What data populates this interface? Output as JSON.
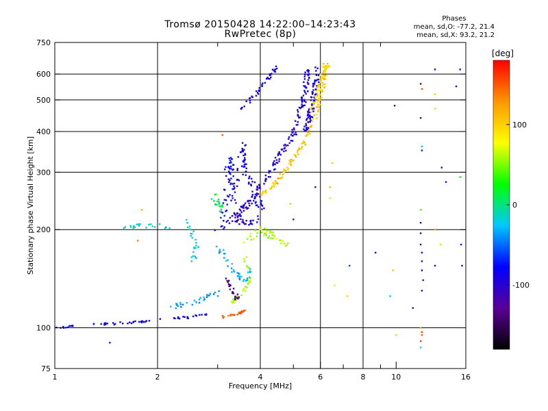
{
  "chart_data": {
    "type": "scatter",
    "title": "Tromsø 20150428 14:22:00–14:23:43",
    "subtitle": "RwPretec (8p)",
    "xlabel": "Frequency [MHz]",
    "ylabel": "Stationary phase Virtual Height [km]",
    "x_scale": "log",
    "y_scale": "log",
    "xlim": [
      1,
      16
    ],
    "ylim": [
      75,
      750
    ],
    "x_ticks": [
      1,
      2,
      4,
      6,
      8,
      10,
      16
    ],
    "x_tick_labels": [
      "1",
      "2",
      "4",
      "6",
      "8",
      "10",
      "16"
    ],
    "x_grid": [
      2,
      4,
      6,
      8
    ],
    "x_minor": [
      3,
      5,
      7,
      9
    ],
    "y_ticks": [
      75,
      100,
      200,
      300,
      400,
      500,
      600,
      750
    ],
    "y_tick_labels": [
      "75",
      "100",
      "200",
      "300",
      "400",
      "500",
      "600",
      "750"
    ],
    "y_grid": [
      100,
      200,
      300,
      400,
      500,
      600
    ],
    "grid": true,
    "phase_info": {
      "heading": "Phases",
      "line_o": "mean, sd,O: -77.2, 21.4",
      "line_x": "mean, sd,X:  93.2, 21.2"
    },
    "colorbar": {
      "label": "[deg]",
      "range": [
        -180,
        180
      ],
      "ticks": [
        100,
        0,
        -100
      ],
      "tick_labels": [
        "100",
        "0",
        "-100"
      ],
      "colors": [
        "#000000",
        "#5a0096",
        "#0000ff",
        "#00c8ff",
        "#00ff00",
        "#ffff00",
        "#ff9600",
        "#ff0000"
      ]
    },
    "series": [
      {
        "kind": "trace",
        "phase": -85,
        "spread": 0.6,
        "count": 60,
        "points": [
          [
            1.0,
            100
          ],
          [
            1.3,
            102
          ],
          [
            1.5,
            103
          ],
          [
            1.8,
            104.5
          ],
          [
            2.1,
            106
          ],
          [
            2.5,
            108
          ],
          [
            2.8,
            110
          ]
        ]
      },
      {
        "kind": "trace",
        "phase": -80,
        "spread": 1.5,
        "count": 55,
        "points": [
          [
            3.1,
            200
          ],
          [
            3.15,
            250
          ],
          [
            3.2,
            300
          ],
          [
            3.25,
            330
          ],
          [
            3.3,
            290
          ],
          [
            3.35,
            240
          ]
        ]
      },
      {
        "kind": "trace",
        "phase": -82,
        "spread": 2.0,
        "count": 80,
        "points": [
          [
            3.2,
            240
          ],
          [
            3.5,
            300
          ],
          [
            3.55,
            360
          ],
          [
            3.6,
            310
          ],
          [
            3.9,
            255
          ],
          [
            4.0,
            230
          ]
        ]
      },
      {
        "kind": "trace",
        "phase": -95,
        "spread": 1.4,
        "count": 170,
        "points": [
          [
            3.4,
            220
          ],
          [
            3.8,
            250
          ],
          [
            4.2,
            290
          ],
          [
            4.6,
            340
          ],
          [
            5.0,
            390
          ],
          [
            5.2,
            450
          ],
          [
            5.4,
            520
          ],
          [
            5.5,
            620
          ]
        ]
      },
      {
        "kind": "trace",
        "phase": -90,
        "spread": 1.4,
        "count": 80,
        "points": [
          [
            5.4,
            400
          ],
          [
            5.6,
            450
          ],
          [
            5.75,
            520
          ],
          [
            5.9,
            620
          ]
        ]
      },
      {
        "kind": "trace",
        "phase": -88,
        "spread": 1.0,
        "count": 40,
        "points": [
          [
            3.5,
            470
          ],
          [
            3.9,
            520
          ],
          [
            4.2,
            580
          ],
          [
            4.5,
            640
          ]
        ]
      },
      {
        "kind": "trace",
        "phase": 105,
        "spread": 1.0,
        "count": 120,
        "points": [
          [
            4.0,
            255
          ],
          [
            4.4,
            275
          ],
          [
            4.8,
            310
          ],
          [
            5.2,
            350
          ],
          [
            5.6,
            400
          ],
          [
            5.9,
            470
          ],
          [
            6.1,
            560
          ],
          [
            6.2,
            650
          ]
        ]
      },
      {
        "kind": "trace",
        "phase": 95,
        "spread": 1.0,
        "count": 55,
        "points": [
          [
            5.6,
            460
          ],
          [
            5.9,
            520
          ],
          [
            6.1,
            600
          ],
          [
            6.3,
            640
          ]
        ]
      },
      {
        "kind": "trace",
        "phase": 150,
        "spread": 0.5,
        "count": 30,
        "points": [
          [
            3.1,
            108
          ],
          [
            3.3,
            109
          ],
          [
            3.5,
            111
          ],
          [
            3.6,
            113
          ]
        ]
      },
      {
        "kind": "trace",
        "phase": 60,
        "spread": 0.8,
        "count": 40,
        "points": [
          [
            3.3,
            120
          ],
          [
            3.5,
            125
          ],
          [
            3.7,
            135
          ],
          [
            3.7,
            150
          ],
          [
            3.6,
            165
          ]
        ]
      },
      {
        "kind": "trace",
        "phase": -30,
        "spread": 1.2,
        "count": 40,
        "points": [
          [
            3.0,
            180
          ],
          [
            3.2,
            160
          ],
          [
            3.4,
            145
          ],
          [
            3.6,
            140
          ],
          [
            3.8,
            150
          ]
        ]
      },
      {
        "kind": "trace",
        "phase": -140,
        "spread": 1.2,
        "count": 25,
        "points": [
          [
            3.2,
            140
          ],
          [
            3.3,
            130
          ],
          [
            3.4,
            125
          ],
          [
            3.5,
            120
          ]
        ]
      },
      {
        "kind": "trace",
        "phase": -20,
        "spread": 1.2,
        "count": 25,
        "points": [
          [
            2.4,
            215
          ],
          [
            2.5,
            200
          ],
          [
            2.6,
            180
          ],
          [
            2.55,
            160
          ]
        ]
      },
      {
        "kind": "trace",
        "phase": -20,
        "spread": 1.0,
        "count": 22,
        "points": [
          [
            1.6,
            205
          ],
          [
            1.8,
            205
          ],
          [
            2.0,
            206
          ],
          [
            2.2,
            200
          ]
        ]
      },
      {
        "kind": "trace",
        "phase": -40,
        "spread": 1.2,
        "count": 30,
        "points": [
          [
            2.1,
            115
          ],
          [
            2.4,
            118
          ],
          [
            2.7,
            122
          ],
          [
            3.0,
            128
          ]
        ]
      },
      {
        "kind": "trace",
        "phase": 60,
        "spread": 2.0,
        "count": 45,
        "points": [
          [
            3.6,
            180
          ],
          [
            4.0,
            200
          ],
          [
            4.4,
            190
          ],
          [
            4.8,
            180
          ]
        ]
      },
      {
        "kind": "trace",
        "phase": -100,
        "spread": 2.0,
        "count": 40,
        "points": [
          [
            3.0,
            200
          ],
          [
            3.3,
            220
          ],
          [
            3.6,
            210
          ],
          [
            3.9,
            215
          ]
        ]
      },
      {
        "kind": "trace",
        "phase": 10,
        "spread": 1.5,
        "count": 20,
        "points": [
          [
            2.9,
            260
          ],
          [
            3.0,
            240
          ],
          [
            3.1,
            230
          ]
        ]
      }
    ],
    "isolated_points": [
      [
        1.45,
        90,
        -100
      ],
      [
        1.8,
        230,
        120
      ],
      [
        1.75,
        185,
        140
      ],
      [
        3.1,
        390,
        150
      ],
      [
        4.9,
        240,
        110
      ],
      [
        5.0,
        215,
        -110
      ],
      [
        5.8,
        270,
        -100
      ],
      [
        6.5,
        320,
        100
      ],
      [
        6.4,
        270,
        110
      ],
      [
        6.4,
        250,
        90
      ],
      [
        6.6,
        135,
        90
      ],
      [
        7.2,
        125,
        100
      ],
      [
        7.3,
        155,
        -60
      ],
      [
        8.7,
        170,
        -100
      ],
      [
        9.6,
        125,
        -20
      ],
      [
        9.8,
        150,
        110
      ],
      [
        9.9,
        480,
        -100
      ],
      [
        10.0,
        95,
        100
      ],
      [
        11.2,
        115,
        -100
      ],
      [
        11.8,
        560,
        -100
      ],
      [
        11.9,
        540,
        150
      ],
      [
        11.8,
        440,
        -110
      ],
      [
        11.9,
        360,
        -20
      ],
      [
        11.9,
        350,
        -110
      ],
      [
        11.8,
        230,
        40
      ],
      [
        11.8,
        210,
        -100
      ],
      [
        11.8,
        195,
        -100
      ],
      [
        11.8,
        180,
        -110
      ],
      [
        11.9,
        170,
        -110
      ],
      [
        11.9,
        160,
        -100
      ],
      [
        11.9,
        150,
        -100
      ],
      [
        12.0,
        140,
        -110
      ],
      [
        11.9,
        130,
        -100
      ],
      [
        11.8,
        100,
        120
      ],
      [
        11.9,
        97,
        160
      ],
      [
        11.9,
        95,
        150
      ],
      [
        11.8,
        91,
        160
      ],
      [
        11.8,
        87,
        -20
      ],
      [
        13.0,
        620,
        -100
      ],
      [
        13.0,
        520,
        100
      ],
      [
        13.0,
        470,
        60
      ],
      [
        13.0,
        200,
        120
      ],
      [
        13.0,
        155,
        -100
      ],
      [
        13.6,
        310,
        -100
      ],
      [
        13.5,
        180,
        60
      ],
      [
        14.0,
        280,
        -100
      ],
      [
        15.0,
        550,
        -100
      ],
      [
        15.4,
        620,
        -110
      ],
      [
        15.4,
        290,
        20
      ],
      [
        15.5,
        180,
        -110
      ],
      [
        15.6,
        155,
        -110
      ]
    ]
  }
}
